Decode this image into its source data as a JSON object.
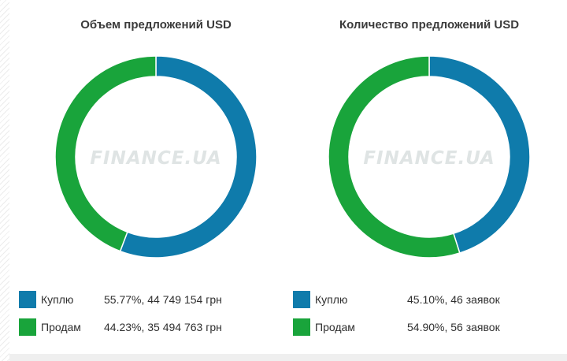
{
  "colors": {
    "buy": "#0f7bab",
    "sell": "#19a43b"
  },
  "chart_data": [
    {
      "type": "pie",
      "title": "Объем предложений USD",
      "watermark": "FINANCE.UA",
      "slices": [
        {
          "label": "Куплю",
          "percent": 55.77,
          "value_text": "55.77%, 44 749 154 грн",
          "color": "#0f7bab"
        },
        {
          "label": "Продам",
          "percent": 44.23,
          "value_text": "44.23%, 35 494 763 грн",
          "color": "#19a43b"
        }
      ]
    },
    {
      "type": "pie",
      "title": "Количество предложений USD",
      "watermark": "FINANCE.UA",
      "slices": [
        {
          "label": "Куплю",
          "percent": 45.1,
          "value_text": "45.10%, 46 заявок",
          "color": "#0f7bab"
        },
        {
          "label": "Продам",
          "percent": 54.9,
          "value_text": "54.90%, 56 заявок",
          "color": "#19a43b"
        }
      ]
    }
  ]
}
